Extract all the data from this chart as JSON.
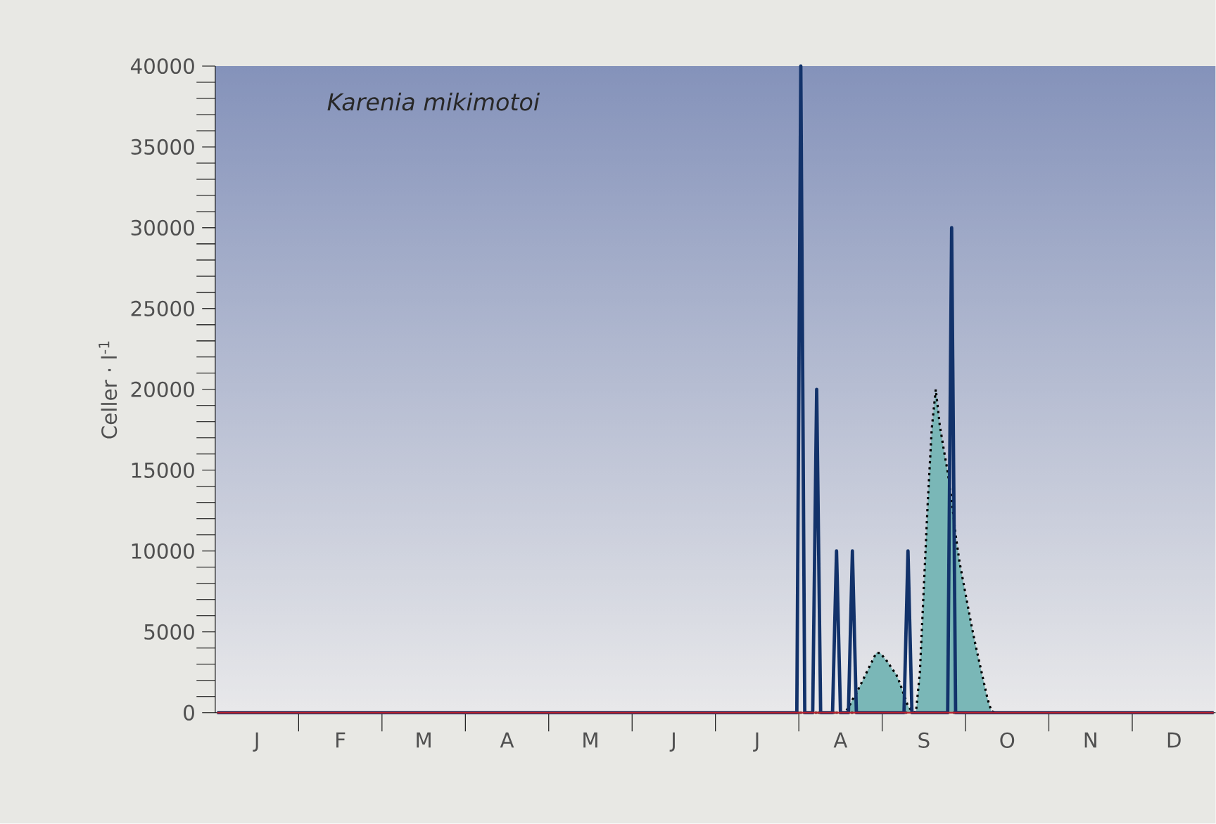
{
  "chart_data": {
    "type": "line",
    "ylabel": "Celler · l$^{-1}$",
    "annotations": [
      "Karenia mikimotoi"
    ],
    "categories": [
      null,
      null,
      null,
      null,
      null,
      null,
      null,
      null,
      null,
      null,
      "J",
      null,
      null,
      null,
      null,
      null,
      null,
      null,
      null,
      null,
      null,
      null,
      null,
      null,
      null,
      null,
      null,
      null,
      null,
      null,
      null,
      "F",
      null,
      null,
      null,
      null,
      null,
      null,
      null,
      null,
      null,
      null,
      null,
      null,
      null,
      null,
      null,
      null,
      null,
      null,
      null,
      null,
      "M",
      null,
      null,
      null,
      null,
      null,
      null,
      null,
      null,
      null,
      null,
      null,
      null,
      null,
      null,
      null,
      null,
      null,
      null,
      null,
      null,
      "A",
      null,
      null,
      null,
      null,
      null,
      null,
      null,
      null,
      null,
      null,
      null,
      null,
      null,
      null,
      null,
      null,
      null,
      null,
      null,
      null,
      "M",
      null,
      null,
      null,
      null,
      null,
      null,
      null,
      null,
      null,
      null,
      null,
      null,
      null,
      null,
      null,
      null,
      null,
      null,
      null,
      null,
      "J",
      null,
      null,
      null,
      null,
      null,
      null,
      null,
      null,
      null,
      null,
      null,
      null,
      null,
      null,
      null,
      null,
      null,
      null,
      null,
      null,
      "J",
      null,
      null,
      null,
      null,
      null,
      null,
      null,
      null,
      null,
      null,
      null,
      null,
      null,
      null,
      null,
      null,
      null,
      null,
      null,
      null,
      "A",
      null,
      null,
      null,
      null,
      null,
      null,
      null,
      null,
      null,
      null,
      null,
      null,
      null,
      null,
      null,
      null,
      null,
      null,
      null,
      null,
      "S",
      null,
      null,
      null,
      null,
      null,
      null,
      null,
      null,
      null,
      null,
      null,
      null,
      null,
      null,
      null,
      null,
      null,
      null,
      null,
      null,
      "O",
      null,
      null,
      null,
      null,
      null,
      null,
      null,
      null,
      null,
      null,
      null,
      null,
      null,
      null,
      null,
      null,
      null,
      null,
      null,
      null,
      "N",
      null,
      null,
      null,
      null,
      null,
      null,
      null,
      null,
      null,
      null,
      null,
      null,
      null,
      null,
      null,
      null,
      null,
      null,
      null,
      null,
      "D",
      null,
      null,
      null,
      null,
      null,
      null,
      null,
      null,
      null,
      null
    ],
    "ylim": [
      0,
      40000
    ],
    "yticks": [
      0,
      5000,
      10000,
      15000,
      20000,
      25000,
      30000,
      35000,
      40000
    ],
    "grid": false,
    "series": [
      {
        "type": "area",
        "color": "#7ab7b7",
        "line_style": "dotted",
        "values": [
          0,
          0,
          0,
          0,
          0,
          0,
          0,
          0,
          0,
          0,
          0,
          0,
          0,
          0,
          0,
          0,
          0,
          0,
          0,
          0,
          0,
          0,
          0,
          0,
          0,
          0,
          0,
          0,
          0,
          0,
          0,
          0,
          0,
          0,
          0,
          0,
          0,
          0,
          0,
          0,
          0,
          0,
          0,
          0,
          0,
          0,
          0,
          0,
          0,
          0,
          0,
          0,
          0,
          0,
          0,
          0,
          0,
          0,
          0,
          0,
          0,
          0,
          0,
          0,
          0,
          0,
          0,
          0,
          0,
          0,
          0,
          0,
          0,
          0,
          0,
          0,
          0,
          0,
          0,
          0,
          0,
          0,
          0,
          0,
          0,
          0,
          0,
          0,
          0,
          0,
          0,
          0,
          0,
          0,
          0,
          0,
          0,
          0,
          0,
          0,
          0,
          0,
          0,
          0,
          0,
          0,
          0,
          0,
          0,
          0,
          0,
          0,
          0,
          0,
          0,
          0,
          0,
          0,
          0,
          0,
          0,
          0,
          0,
          0,
          0,
          0,
          0,
          0,
          0,
          0,
          0,
          0,
          0,
          0,
          0,
          0,
          0,
          0,
          0,
          0,
          0,
          0,
          0,
          0,
          0,
          0,
          0,
          0,
          0,
          0,
          0,
          0,
          0,
          0,
          0,
          0,
          0,
          0,
          0,
          300,
          800,
          1200,
          1700,
          2200,
          2700,
          3200,
          3700,
          3700,
          3400,
          3100,
          2700,
          2400,
          1800,
          1100,
          400,
          100,
          0,
          2500,
          7800,
          13100,
          17600,
          20000,
          17800,
          16300,
          14900,
          13200,
          11000,
          9300,
          8000,
          6700,
          5400,
          4200,
          3100,
          2000,
          900,
          100,
          0,
          0,
          0,
          0,
          0,
          0,
          0,
          0,
          0,
          0,
          0,
          0,
          0,
          0,
          0,
          0,
          0,
          0,
          0,
          0,
          0,
          0,
          0,
          0,
          0,
          0,
          0,
          0,
          0,
          0,
          0,
          0,
          0,
          0,
          0,
          0,
          0,
          0,
          0,
          0,
          0,
          0,
          0,
          0,
          0,
          0,
          0,
          0,
          0,
          0,
          0,
          0,
          0,
          0,
          0,
          0
        ]
      },
      {
        "color": "#c0202a",
        "line_style": "solid",
        "values": [
          0,
          0,
          0,
          0,
          0,
          0,
          0,
          0,
          0,
          0,
          0,
          0,
          0,
          0,
          0,
          0,
          0,
          0,
          0,
          0,
          0,
          0,
          0,
          0,
          0,
          0,
          0,
          0,
          0,
          0,
          0,
          0,
          0,
          0,
          0,
          0,
          0,
          0,
          0,
          0,
          0,
          0,
          0,
          0,
          0,
          0,
          0,
          0,
          0,
          0,
          0,
          0,
          0,
          0,
          0,
          0,
          0,
          0,
          0,
          0,
          0,
          0,
          0,
          0,
          0,
          0,
          0,
          0,
          0,
          0,
          0,
          0,
          0,
          0,
          0,
          0,
          0,
          0,
          0,
          0,
          0,
          0,
          0,
          0,
          0,
          0,
          0,
          0,
          0,
          0,
          0,
          0,
          0,
          0,
          0,
          0,
          0,
          0,
          0,
          0,
          0,
          0,
          0,
          0,
          0,
          0,
          0,
          0,
          0,
          0,
          0,
          0,
          0,
          0,
          0,
          0,
          0,
          0,
          0,
          0,
          0,
          0,
          0,
          0,
          0,
          0,
          0,
          0,
          0,
          0,
          0,
          0,
          0,
          0,
          0,
          0,
          0,
          0,
          0,
          0,
          0,
          0,
          0,
          0,
          0,
          0,
          0,
          0,
          0,
          0,
          0,
          0,
          0,
          0,
          0,
          0,
          0,
          0,
          0,
          0,
          0,
          0,
          0,
          0,
          0,
          0,
          0,
          0,
          0,
          0,
          0,
          0,
          0,
          0,
          0,
          0,
          0,
          0,
          0,
          0,
          0,
          0,
          0,
          0,
          0,
          0,
          0,
          0,
          0,
          0,
          0,
          0,
          0,
          0,
          0,
          0,
          0,
          0,
          0,
          0,
          0,
          0,
          0,
          0,
          0,
          0,
          0,
          0,
          0,
          0,
          0,
          0,
          0,
          0,
          0,
          0,
          0,
          0,
          0,
          0,
          0,
          0,
          0,
          0,
          0,
          0,
          0,
          0,
          0,
          0,
          0,
          0,
          0,
          0,
          0,
          0,
          0,
          0,
          0,
          0,
          0,
          0,
          0,
          0,
          0,
          0,
          0,
          0,
          0,
          0,
          0,
          0
        ]
      },
      {
        "color": "#12326a",
        "line_style": "solid",
        "values": [
          0,
          0,
          0,
          0,
          0,
          0,
          0,
          0,
          0,
          0,
          0,
          0,
          0,
          0,
          0,
          0,
          0,
          0,
          0,
          0,
          0,
          0,
          0,
          0,
          0,
          0,
          0,
          0,
          0,
          0,
          0,
          0,
          0,
          0,
          0,
          0,
          0,
          0,
          0,
          0,
          0,
          0,
          0,
          0,
          0,
          0,
          0,
          0,
          0,
          0,
          0,
          0,
          0,
          0,
          0,
          0,
          0,
          0,
          0,
          0,
          0,
          0,
          0,
          0,
          0,
          0,
          0,
          0,
          0,
          0,
          0,
          0,
          0,
          0,
          0,
          0,
          0,
          0,
          0,
          0,
          0,
          0,
          0,
          0,
          0,
          0,
          0,
          0,
          0,
          0,
          0,
          0,
          0,
          0,
          0,
          0,
          0,
          0,
          0,
          0,
          0,
          0,
          0,
          0,
          0,
          0,
          0,
          0,
          0,
          0,
          0,
          0,
          0,
          0,
          0,
          0,
          0,
          0,
          0,
          0,
          0,
          0,
          0,
          0,
          0,
          0,
          0,
          0,
          0,
          0,
          0,
          0,
          0,
          0,
          0,
          0,
          0,
          0,
          0,
          0,
          0,
          0,
          0,
          0,
          0,
          0,
          0,
          40000,
          0,
          0,
          0,
          20000,
          0,
          0,
          0,
          0,
          10000,
          0,
          0,
          0,
          10000,
          0,
          0,
          0,
          0,
          0,
          0,
          0,
          0,
          0,
          0,
          0,
          0,
          0,
          10000,
          0,
          0,
          0,
          0,
          0,
          0,
          0,
          0,
          0,
          0,
          30000,
          0,
          0,
          0,
          0,
          0,
          0,
          0,
          0,
          0,
          0,
          0,
          0,
          0,
          0,
          0,
          0,
          0,
          0,
          0,
          0,
          0,
          0,
          0,
          0,
          0,
          0,
          0,
          0,
          0,
          0,
          0,
          0,
          0,
          0,
          0,
          0,
          0,
          0,
          0,
          0,
          0,
          0,
          0,
          0,
          0,
          0,
          0,
          0,
          0,
          0,
          0,
          0,
          0,
          0,
          0,
          0,
          0,
          0,
          0,
          0,
          0,
          0,
          0,
          0,
          0,
          0
        ]
      }
    ]
  }
}
